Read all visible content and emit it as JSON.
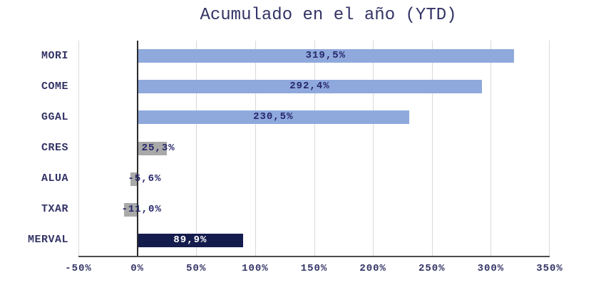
{
  "chart_data": {
    "type": "bar",
    "orientation": "horizontal",
    "title": "Acumulado en el año (YTD)",
    "categories": [
      "MORI",
      "COME",
      "GGAL",
      "CRES",
      "ALUA",
      "TXAR",
      "MERVAL"
    ],
    "values": [
      319.5,
      292.4,
      230.5,
      25.3,
      -5.6,
      -11.0,
      89.9
    ],
    "value_labels": [
      "319,5%",
      "292,4%",
      "230,5%",
      "25,3%",
      "-5,6%",
      "-11,0%",
      "89,9%"
    ],
    "bar_colors": [
      "#8FA9DC",
      "#8FA9DC",
      "#8FA9DC",
      "#A9A9A9",
      "#A9A9A9",
      "#A9A9A9",
      "#141B4D"
    ],
    "label_colors": [
      "#26266B",
      "#26266B",
      "#26266B",
      "#26266B",
      "#26266B",
      "#26266B",
      "#FFFFFF"
    ],
    "xlabel": "",
    "ylabel": "",
    "xlim": [
      -50,
      350
    ],
    "x_ticks": [
      -50,
      0,
      50,
      100,
      150,
      200,
      250,
      300,
      350
    ],
    "x_tick_labels": [
      "-50%",
      "0%",
      "50%",
      "100%",
      "150%",
      "200%",
      "250%",
      "300%",
      "350%"
    ],
    "grid": "vertical",
    "legend": "none",
    "colors": {
      "grid": "#D9D9D9",
      "zero_axis": "#2B2B2B",
      "bottom_axis": "#4D4D4D",
      "text": "#333366",
      "background": "#FFFFFF"
    }
  }
}
